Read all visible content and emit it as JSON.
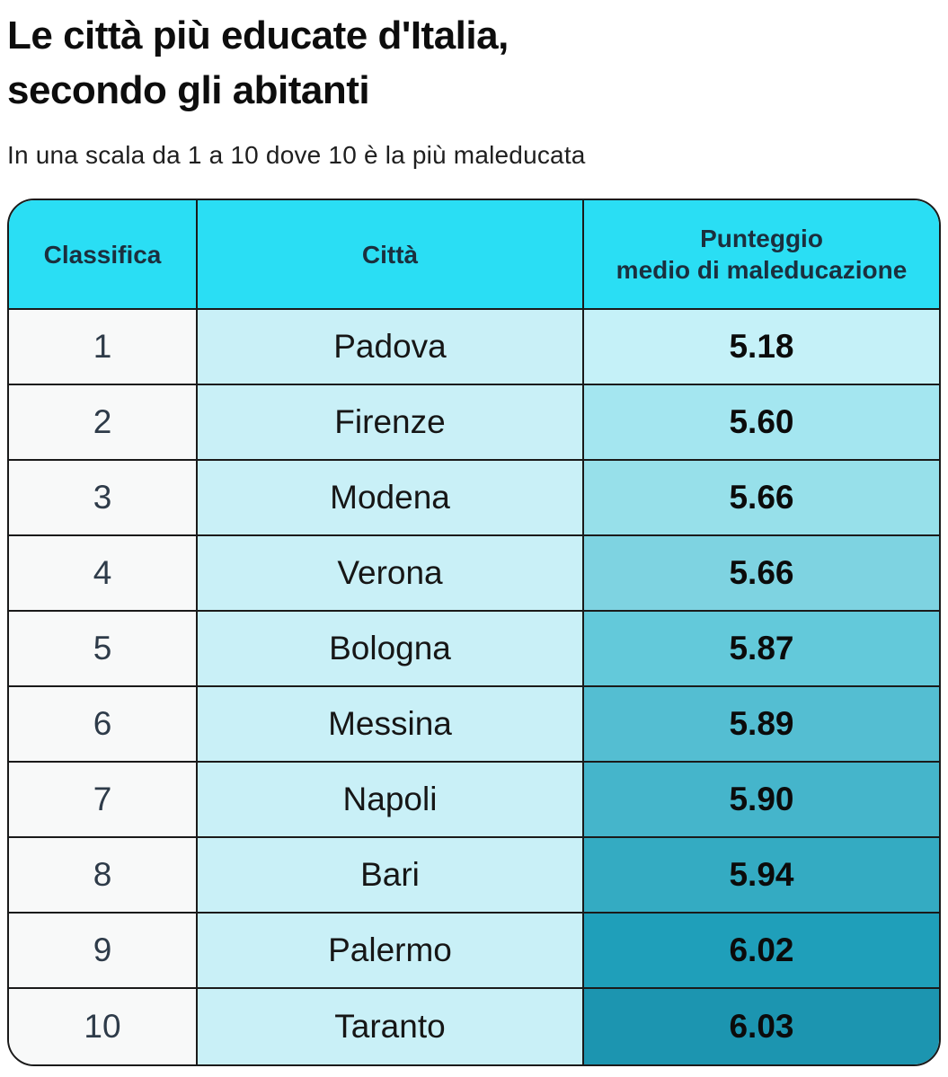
{
  "page": {
    "title_line1": "Le città più educate d'Italia,",
    "title_line2": "secondo gli abitanti",
    "subtitle": "In una scala da 1 a 10 dove 10 è la più maleducata"
  },
  "colors": {
    "header_bg": "#2adef4",
    "header_text": "#1b2f3e",
    "rank_col_bg": "#f8f9f9",
    "city_col_bg": "#c9f0f7",
    "border": "#1a1a1a"
  },
  "table": {
    "header": {
      "col1": "Classifica",
      "col2": "Città",
      "col3_line1": "Punteggio",
      "col3_line2": "medio di maleducazione"
    },
    "rows": [
      {
        "rank": "1",
        "city": "Padova",
        "score": "5.18",
        "score_bg": "#c5f1f8"
      },
      {
        "rank": "2",
        "city": "Firenze",
        "score": "5.60",
        "score_bg": "#a4e6f0"
      },
      {
        "rank": "3",
        "city": "Modena",
        "score": "5.66",
        "score_bg": "#97e0ea"
      },
      {
        "rank": "4",
        "city": "Verona",
        "score": "5.66",
        "score_bg": "#7ed3e1"
      },
      {
        "rank": "5",
        "city": "Bologna",
        "score": "5.87",
        "score_bg": "#63c9da"
      },
      {
        "rank": "6",
        "city": "Messina",
        "score": "5.89",
        "score_bg": "#54bed2"
      },
      {
        "rank": "7",
        "city": "Napoli",
        "score": "5.90",
        "score_bg": "#45b5cb"
      },
      {
        "rank": "8",
        "city": "Bari",
        "score": "5.94",
        "score_bg": "#34abc2"
      },
      {
        "rank": "9",
        "city": "Palermo",
        "score": "6.02",
        "score_bg": "#1f9fba"
      },
      {
        "rank": "10",
        "city": "Taranto",
        "score": "6.03",
        "score_bg": "#1c95b0"
      }
    ]
  },
  "chart_data": {
    "type": "table",
    "title": "Le città più educate d'Italia, secondo gli abitanti",
    "subtitle": "In una scala da 1 a 10 dove 10 è la più maleducata",
    "columns": [
      "Classifica",
      "Città",
      "Punteggio medio di maleducazione"
    ],
    "rows": [
      [
        1,
        "Padova",
        5.18
      ],
      [
        2,
        "Firenze",
        5.6
      ],
      [
        3,
        "Modena",
        5.66
      ],
      [
        4,
        "Verona",
        5.66
      ],
      [
        5,
        "Bologna",
        5.87
      ],
      [
        6,
        "Messina",
        5.89
      ],
      [
        7,
        "Napoli",
        5.9
      ],
      [
        8,
        "Bari",
        5.94
      ],
      [
        9,
        "Palermo",
        6.02
      ],
      [
        10,
        "Taranto",
        6.03
      ]
    ],
    "scale_min": 1,
    "scale_max": 10,
    "legend_position": "none",
    "color_encoding": "score cell fill darkens from light cyan to teal as score increases"
  }
}
